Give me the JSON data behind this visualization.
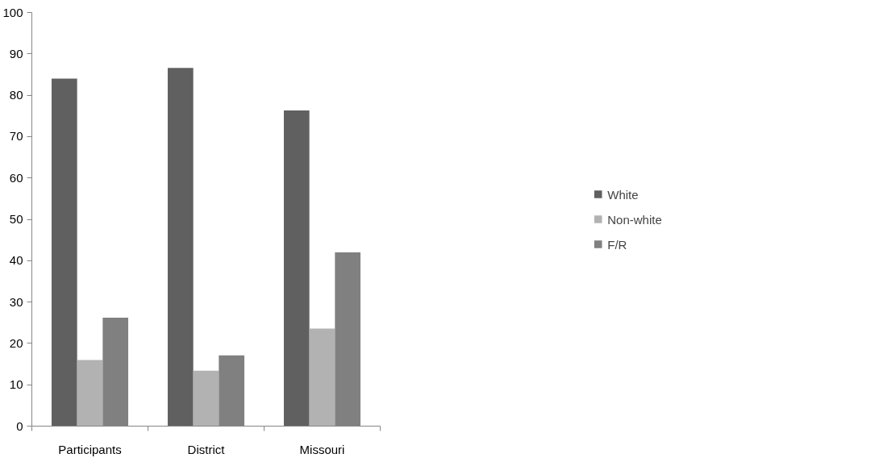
{
  "chart_data": {
    "type": "bar",
    "categories": [
      "Participants",
      "District",
      "Missouri"
    ],
    "series": [
      {
        "name": "White",
        "color": "#606060",
        "values": [
          84,
          86.6,
          76.3
        ]
      },
      {
        "name": "Non-white",
        "color": "#b2b2b2",
        "values": [
          16,
          13.4,
          23.6
        ]
      },
      {
        "name": "F/R",
        "color": "#808080",
        "values": [
          26.2,
          17.1,
          42
        ]
      }
    ],
    "ylim": [
      0,
      100
    ],
    "yticks": [
      0,
      10,
      20,
      30,
      40,
      50,
      60,
      70,
      80,
      90,
      100
    ],
    "grid": false,
    "legend": "right"
  }
}
